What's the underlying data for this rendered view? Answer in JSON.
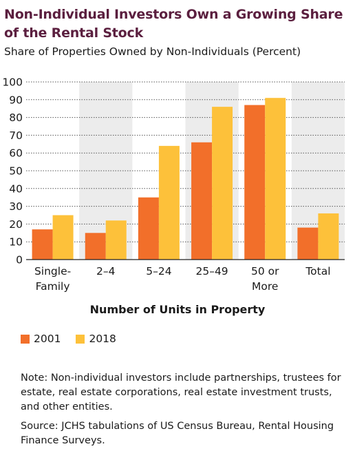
{
  "chart_data": {
    "type": "bar",
    "title": "Non-Individual Investors Own a Growing Share of the Rental Stock",
    "subtitle": "Share of Properties Owned by Non-Individuals (Percent)",
    "xlabel": "Number of Units in Property",
    "ylabel": "",
    "ylim": [
      0,
      100
    ],
    "yticks": [
      0,
      10,
      20,
      30,
      40,
      50,
      60,
      70,
      80,
      90,
      100
    ],
    "categories": [
      "Single-Family",
      "2–4",
      "5–24",
      "25–49",
      "50 or More",
      "Total"
    ],
    "category_lines": [
      [
        "Single-",
        "Family"
      ],
      [
        "2–4"
      ],
      [
        "5–24"
      ],
      [
        "25–49"
      ],
      [
        "50 or",
        "More"
      ],
      [
        "Total"
      ]
    ],
    "series": [
      {
        "name": "2001",
        "color": "#f26f2a",
        "values": [
          17,
          15,
          35,
          66,
          87,
          18
        ]
      },
      {
        "name": "2018",
        "color": "#fdc13a",
        "values": [
          25,
          22,
          64,
          86,
          91,
          26
        ]
      }
    ],
    "grid": true,
    "legend": "bottom-left"
  },
  "notes": {
    "note": "Note: Non-individual investors include partnerships, trustees for estate, real estate corporations, real estate investment trusts, and other entities.",
    "source": "Source: JCHS tabulations of US Census Bureau, Rental Housing Finance Surveys."
  }
}
